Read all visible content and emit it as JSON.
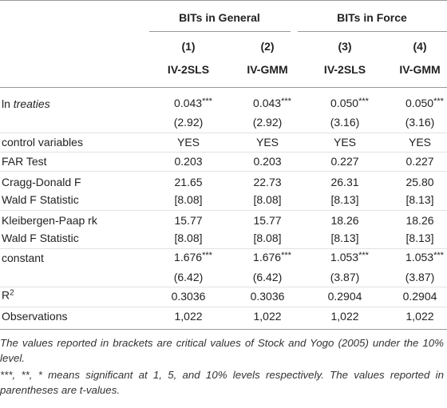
{
  "header": {
    "groups": [
      "BITs in General",
      "BITs in Force"
    ],
    "numbers": [
      "(1)",
      "(2)",
      "(3)",
      "(4)"
    ],
    "models": [
      "IV-2SLS",
      "IV-GMM",
      "IV-2SLS",
      "IV-GMM"
    ]
  },
  "rows": [
    {
      "label_plain": "ln",
      "label_italic": "treaties",
      "cells": [
        {
          "value": "0.043",
          "stars": "***"
        },
        {
          "value": "0.043",
          "stars": "***"
        },
        {
          "value": "0.050",
          "stars": "***"
        },
        {
          "value": "0.050",
          "stars": "***"
        }
      ]
    },
    {
      "cells": [
        "(2.92)",
        "(2.92)",
        "(3.16)",
        "(3.16)"
      ]
    },
    {
      "label": "control variables",
      "cells": [
        "YES",
        "YES",
        "YES",
        "YES"
      ]
    },
    {
      "label": "FAR Test",
      "cells": [
        "0.203",
        "0.203",
        "0.227",
        "0.227"
      ]
    },
    {
      "label": "Cragg-Donald F",
      "cells": [
        "21.65",
        "22.73",
        "26.31",
        "25.80"
      ]
    },
    {
      "label": "Wald F Statistic",
      "cells": [
        "[8.08]",
        "[8.08]",
        "[8.13]",
        "[8.13]"
      ]
    },
    {
      "label": "Kleibergen-Paap rk",
      "cells": [
        "15.77",
        "15.77",
        "18.26",
        "18.26"
      ]
    },
    {
      "label": "Wald F Statistic",
      "cells": [
        "[8.08]",
        "[8.08]",
        "[8.13]",
        "[8.13]"
      ]
    },
    {
      "label": "constant",
      "cells": [
        {
          "value": "1.676",
          "stars": "***"
        },
        {
          "value": "1.676",
          "stars": "***"
        },
        {
          "value": "1.053",
          "stars": "***"
        },
        {
          "value": "1.053",
          "stars": "***"
        }
      ]
    },
    {
      "cells": [
        "(6.42)",
        "(6.42)",
        "(3.87)",
        "(3.87)"
      ]
    },
    {
      "label": "R",
      "label_sup": "2",
      "cells": [
        "0.3036",
        "0.3036",
        "0.2904",
        "0.2904"
      ]
    },
    {
      "label": "Observations",
      "cells": [
        "1,022",
        "1,022",
        "1,022",
        "1,022"
      ]
    }
  ],
  "notes": [
    "The values reported in brackets are critical values of Stock and Yogo (2005) under the 10% level.",
    "***, **, * means significant at 1, 5, and 10% levels respectively. The values reported in parentheses are t-values."
  ]
}
